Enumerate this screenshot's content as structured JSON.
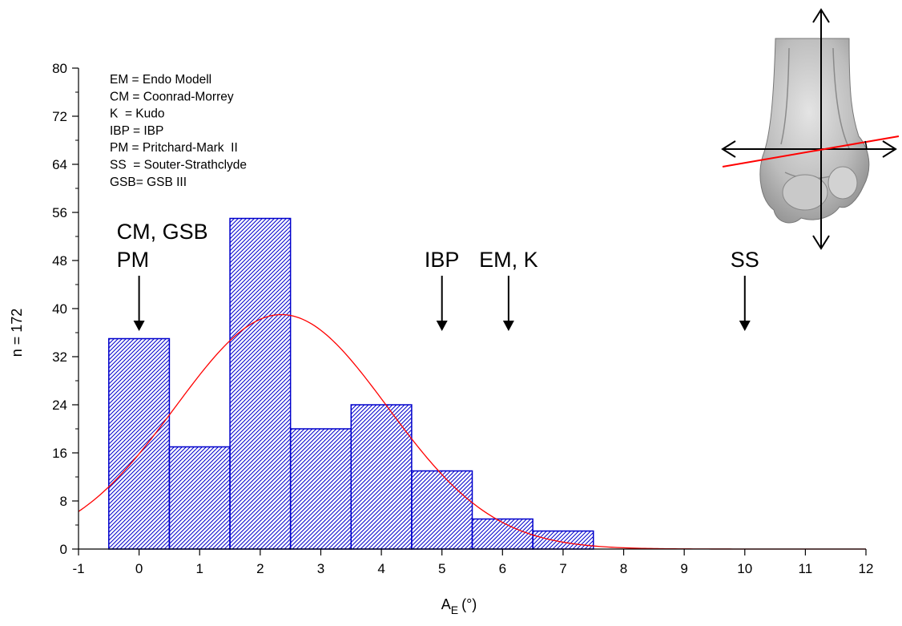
{
  "chart_data": {
    "type": "bar",
    "subtype": "histogram with fitted normal curve",
    "xlabel_main": "A",
    "xlabel_sub": "E",
    "xlabel_unit": "(°)",
    "ylabel": "n = 172",
    "xlim": [
      -1,
      12
    ],
    "ylim": [
      0,
      80
    ],
    "x_ticks": [
      -1,
      0,
      1,
      2,
      3,
      4,
      5,
      6,
      7,
      8,
      9,
      10,
      11,
      12
    ],
    "y_ticks": [
      0,
      8,
      16,
      24,
      32,
      40,
      48,
      56,
      64,
      72,
      80
    ],
    "y_minor_step": 4,
    "grid": false,
    "bars": [
      {
        "x0": -0.5,
        "x1": 0.5,
        "value": 35
      },
      {
        "x0": 0.5,
        "x1": 1.5,
        "value": 17
      },
      {
        "x0": 1.5,
        "x1": 2.5,
        "value": 55
      },
      {
        "x0": 2.5,
        "x1": 3.5,
        "value": 20
      },
      {
        "x0": 3.5,
        "x1": 4.5,
        "value": 24
      },
      {
        "x0": 4.5,
        "x1": 5.5,
        "value": 13
      },
      {
        "x0": 5.5,
        "x1": 6.5,
        "value": 5
      },
      {
        "x0": 6.5,
        "x1": 7.5,
        "value": 3
      }
    ],
    "bar_color": "#0000cc",
    "bar_pattern": "diagonal hatch",
    "fit_curve": {
      "kind": "normal",
      "mean": 2.35,
      "sd": 1.75,
      "peak": 39,
      "color": "#ff0000"
    },
    "legend": {
      "placement": "top-left",
      "items": [
        "EM = Endo Modell",
        "CM = Coonrad-Morrey",
        "K  = Kudo",
        "IBP = IBP",
        "PM = Pritchard-Mark  II",
        "SS  = Souter-Strathclyde",
        "GSB= GSB III"
      ]
    },
    "annotations": [
      {
        "lines": [
          "CM, GSB",
          "PM"
        ],
        "x": 0,
        "arrow_tip_y": 36
      },
      {
        "lines": [
          "IBP"
        ],
        "x": 5,
        "arrow_tip_y": 36
      },
      {
        "lines": [
          "EM, K"
        ],
        "x": 6.1,
        "arrow_tip_y": 36
      },
      {
        "lines": [
          "SS"
        ],
        "x": 10,
        "arrow_tip_y": 36
      }
    ]
  },
  "inset": {
    "description_icon": "elbow-bone-illustration",
    "axis_color": "#000000",
    "angle_line_color": "#ff0000"
  }
}
